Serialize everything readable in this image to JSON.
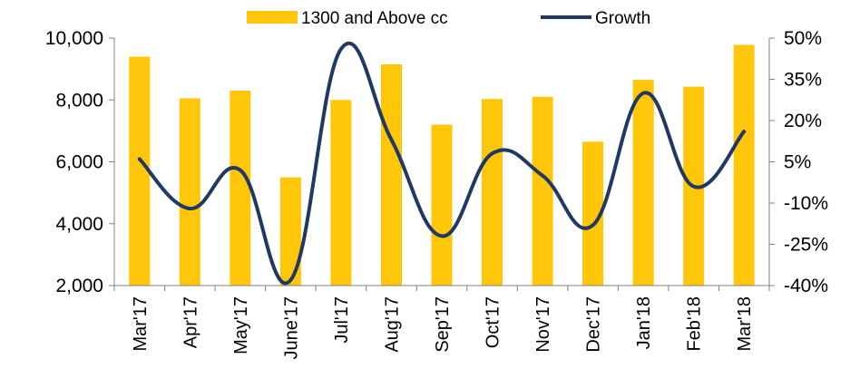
{
  "chart_data": {
    "type": "bar",
    "title": "",
    "xlabel": "",
    "ylabel": "",
    "categories": [
      "Mar'17",
      "Apr'17",
      "May'17",
      "June'17",
      "Jul'17",
      "Aug'17",
      "Sep'17",
      "Oct'17",
      "Nov'17",
      "Dec'17",
      "Jan'18",
      "Feb'18",
      "Mar'18"
    ],
    "series": [
      {
        "name": "1300 and Above cc",
        "type": "bar",
        "axis": "left",
        "color": "#FFC60A",
        "values": [
          9400,
          8050,
          8300,
          5500,
          8000,
          9150,
          7200,
          8030,
          8100,
          6650,
          8650,
          8430,
          9780
        ]
      },
      {
        "name": "Growth",
        "type": "line",
        "axis": "right",
        "unit": "%",
        "color": "#1F3864",
        "values": [
          6,
          -12,
          2,
          -38,
          46,
          13,
          -22,
          8,
          0,
          -18,
          30,
          -4,
          16
        ]
      }
    ],
    "ylim_left": [
      2000,
      10000
    ],
    "yticks_left": [
      "2,000",
      "4,000",
      "6,000",
      "8,000",
      "10,000"
    ],
    "ylim_right": [
      -40,
      50
    ],
    "yticks_right": [
      "-40%",
      "-25%",
      "-10%",
      "5%",
      "20%",
      "35%",
      "50%"
    ],
    "legend_position": "top-center",
    "grid": false
  }
}
